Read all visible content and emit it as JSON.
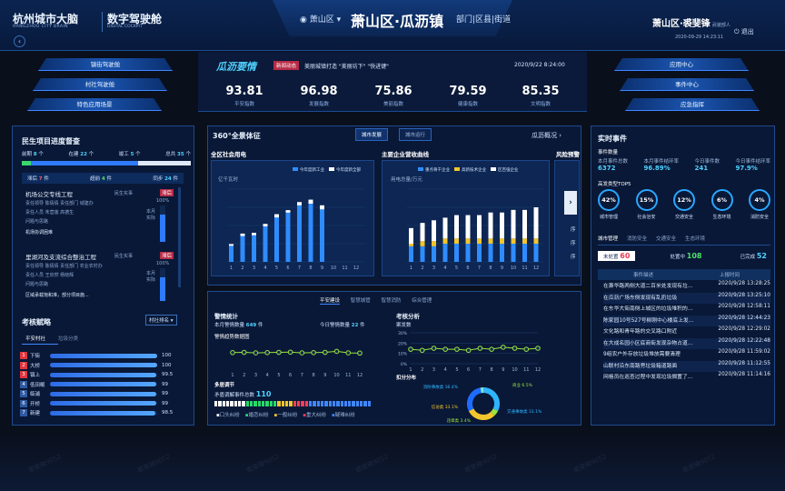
{
  "header": {
    "logo_main": "杭州城市大脑",
    "logo_sub": "HANGZHOU CITY BRAIN",
    "logo_cockpit": "数字驾驶舱",
    "logo_cockpit_sub": "DIGITAL COCKPIT",
    "location_label": "萧山区",
    "title": "萧山区·瓜沥镇",
    "sub_level": "部门|区县|街道",
    "user": "萧山区·裘斐锋",
    "user_role": "武装部人",
    "datetime": "2020-09-29 14:23:11",
    "exit": "退出"
  },
  "nav_left": [
    "镇街驾驶舱",
    "村社驾驶舱",
    "特色应用场景"
  ],
  "nav_right": [
    "应用中心",
    "事件中心",
    "应急指挥"
  ],
  "hero": {
    "title": "瓜沥要情",
    "tag": "新闻动态",
    "news": "美丽城镇打造 \"美丽坊下\" \"快进键\"",
    "date": "2020/9/22 8:24:00",
    "indices": [
      {
        "value": "93.81",
        "label": "平安指数"
      },
      {
        "value": "96.98",
        "label": "发展指数"
      },
      {
        "value": "75.86",
        "label": "美丽指数"
      },
      {
        "value": "79.59",
        "label": "健康指数"
      },
      {
        "value": "85.35",
        "label": "文明指数"
      }
    ]
  },
  "left": {
    "title": "民生项目进度督查",
    "stats": [
      {
        "k": "前期",
        "v": "8",
        "u": "个"
      },
      {
        "k": "在建",
        "v": "22",
        "u": "个"
      },
      {
        "k": "竣工",
        "v": "5",
        "u": "个"
      },
      {
        "k": "总共",
        "v": "35",
        "u": "个"
      }
    ],
    "tabs": [
      {
        "k": "滞后",
        "v": "7",
        "u": "件"
      },
      {
        "k": "超前",
        "v": "4",
        "u": "件"
      },
      {
        "k": "同步",
        "v": "24",
        "u": "件"
      }
    ],
    "projects": [
      {
        "name": "机场公交专线工程",
        "unit": "民生实事",
        "lines": [
          "责任领导 陈倩倩  责任部门 城建办",
          "责任人员 朱营莲   高德生",
          "问题与思路",
          "机场协调困难"
        ],
        "tag": "滞后",
        "month": "本月实际",
        "pct": "100%"
      },
      {
        "name": "里湖河及支流综合整治工程",
        "unit": "民生实事",
        "lines": [
          "责任领导 陈倩倩  责任部门 农业农村办",
          "责任人员 王欣然   杨晓辉",
          "问题与思路",
          "区域承载饱和准，部分项目施..."
        ],
        "tag": "滞后",
        "month": "本月实际",
        "pct": "100%"
      }
    ],
    "rank_title": "考核赋略",
    "rank_btn": "村社排名",
    "rank_tabs": [
      "平安村社",
      "垃圾分类"
    ],
    "rank": [
      {
        "n": "1",
        "name": "下街",
        "v": "100"
      },
      {
        "n": "2",
        "name": "大桥",
        "v": "100"
      },
      {
        "n": "3",
        "name": "镇上",
        "v": "99.5"
      },
      {
        "n": "4",
        "name": "低田畈",
        "v": "99"
      },
      {
        "n": "5",
        "name": "临浦",
        "v": "99"
      },
      {
        "n": "6",
        "name": "开桥",
        "v": "99"
      },
      {
        "n": "7",
        "name": "新建",
        "v": "98.5"
      }
    ]
  },
  "mid": {
    "title": "360°全景体征",
    "tabs": [
      "城市发展",
      "城市运行"
    ],
    "link": "瓜沥概况",
    "chart1": {
      "title": "全区社会用电",
      "unit": "亿千瓦时"
    },
    "chart2": {
      "title": "主要企业营收曲线",
      "unit": "用电总量/万元"
    },
    "chart3_title": "风险预警",
    "chart3_items": [
      "序",
      "序",
      "序"
    ],
    "tabs2": [
      "平安建设",
      "智慧城管",
      "智慧消防",
      "综合管理"
    ],
    "police": {
      "title": "警情统计",
      "month_label": "本月警情数量",
      "month_val": "649",
      "today_label": "今日警情数量",
      "today_val": "22",
      "trend": "警情趋势数据图",
      "multi": "多居调节",
      "multi_total": "矛盾调解事件总数",
      "multi_val": "110",
      "legend": [
        "口头纠纷",
        "婚恋纠纷",
        "一般纠纷",
        "重大纠纷",
        "疑难纠纷"
      ]
    },
    "exam": {
      "title": "考核分析",
      "sub": "案发数",
      "dist": "扣分分布"
    }
  },
  "right": {
    "title": "实时事件",
    "count_label": "事件数量",
    "stats": [
      {
        "k": "本月事件总数",
        "v": "6372"
      },
      {
        "k": "本月事件结环率",
        "v": "96.89%"
      },
      {
        "k": "今日事件数",
        "v": "241"
      },
      {
        "k": "今日事件结环率",
        "v": "97.9%"
      }
    ],
    "top5_title": "高发类型TOP5",
    "top5": [
      {
        "v": "42%",
        "k": "城市管理"
      },
      {
        "v": "15%",
        "k": "社会治安"
      },
      {
        "v": "12%",
        "k": "交通安全"
      },
      {
        "v": "6%",
        "k": "生态环境"
      },
      {
        "v": "4%",
        "k": "消防安全"
      }
    ],
    "tabs": [
      "城市管理",
      "消防安全",
      "交通安全",
      "生态环境"
    ],
    "status": [
      {
        "k": "未处置",
        "v": "60"
      },
      {
        "k": "处置中",
        "v": "108"
      },
      {
        "k": "已完成",
        "v": "52"
      }
    ],
    "col1": "事件描述",
    "col2": "上报时间",
    "events": [
      {
        "d": "在萧华路两侧大道二百米处发现有垃圾堆放，影响周边环...",
        "t": "2020/9/28 13:28:25"
      },
      {
        "d": "在瓜沥广场东侧发现有乱扔垃圾",
        "t": "2020/9/28 13:25:10"
      },
      {
        "d": "在东华大街南侧上城区的垃圾堆积的的问题",
        "t": "2020/9/28 12:58:11"
      },
      {
        "d": "陈家园10号527号柳刚中心楼底上发现垃圾堆放",
        "t": "2020/9/28 12:44:23"
      },
      {
        "d": "文化路和青年路的交叉路口附近",
        "t": "2020/9/28 12:29:02"
      },
      {
        "d": "在大成名园小区底商街发现杂物占道有不后",
        "t": "2020/9/28 12:22:48"
      },
      {
        "d": "9组农户外存放垃圾堆放需要清理",
        "t": "2020/9/28 11:59:02"
      },
      {
        "d": "山联村沿东南路旁垃圾箱道路面",
        "t": "2020/9/28 11:12:55"
      },
      {
        "d": "网格员在巡查过程中发现垃圾搁置了，在长...",
        "t": "2020/9/28 11:14:16"
      }
    ]
  },
  "watermark": "裘斐锋9052",
  "chart_data": [
    {
      "type": "bar",
      "title": "全区社会用电",
      "ylabel": "亿千瓦时",
      "categories": [
        "1",
        "2",
        "3",
        "4",
        "5",
        "6",
        "7",
        "8",
        "9",
        "10",
        "11",
        "12"
      ],
      "series": [
        {
          "name": "今年度新工业",
          "values": [
            2.0,
            3.2,
            3.3,
            4.4,
            5.5,
            6.1,
            7.0,
            7.2,
            6.5,
            0,
            0,
            0
          ]
        },
        {
          "name": "今年度新全部",
          "values": [
            2.2,
            3.5,
            3.6,
            4.7,
            5.9,
            6.4,
            7.4,
            7.7,
            7.0,
            0,
            0,
            0
          ]
        }
      ],
      "ylim": [
        0,
        9
      ]
    },
    {
      "type": "bar",
      "title": "主要企业营收曲线",
      "ylabel": "用电总量/万元",
      "categories": [
        "1",
        "2",
        "3",
        "4",
        "5",
        "6",
        "7",
        "8",
        "9",
        "10",
        "11",
        "12"
      ],
      "series": [
        {
          "name": "重点骨干企业",
          "values": [
            3,
            3,
            3,
            3.5,
            3.5,
            3.5,
            3.5,
            3.5,
            3.5,
            3.5,
            3.5,
            3.5
          ]
        },
        {
          "name": "高新技术企业",
          "values": [
            0.5,
            1,
            1,
            1,
            1,
            1,
            1,
            1,
            1,
            1,
            1,
            1
          ]
        },
        {
          "name": "区百强企业",
          "values": [
            3,
            3.5,
            4,
            4,
            4.5,
            4.5,
            4.5,
            5,
            5,
            5.5,
            5.5,
            6
          ]
        }
      ],
      "ylim": [
        0,
        14
      ]
    },
    {
      "type": "line",
      "title": "警情趋势数据图",
      "x": [
        "1",
        "2",
        "3",
        "4",
        "5",
        "6",
        "7",
        "8",
        "9",
        "10",
        "11",
        "12"
      ],
      "series": [
        {
          "name": "警情",
          "values": [
            65,
            66,
            64,
            65,
            66,
            67,
            64,
            65,
            66,
            70,
            64,
            63
          ]
        }
      ],
      "ylim": [
        0,
        100
      ]
    },
    {
      "type": "line",
      "title": "案发数",
      "x": [
        "1",
        "2",
        "3",
        "4",
        "5",
        "6",
        "7",
        "8",
        "9",
        "10",
        "11",
        "12"
      ],
      "series": [
        {
          "name": "案发数",
          "values": [
            14,
            13,
            15,
            14,
            14,
            13,
            15,
            14,
            16,
            15,
            14,
            15
          ]
        }
      ],
      "ylabel": "",
      "ylim": [
        0,
        30
      ]
    },
    {
      "type": "pie",
      "title": "扣分分布",
      "slices": [
        {
          "label": "消防事故类",
          "value": 36.4
        },
        {
          "label": "商业",
          "value": 6.5
        },
        {
          "label": "交通事故类",
          "value": 33.1
        },
        {
          "label": "信访类",
          "value": 33.1
        },
        {
          "label": "违章类",
          "value": 3.4
        }
      ]
    }
  ]
}
